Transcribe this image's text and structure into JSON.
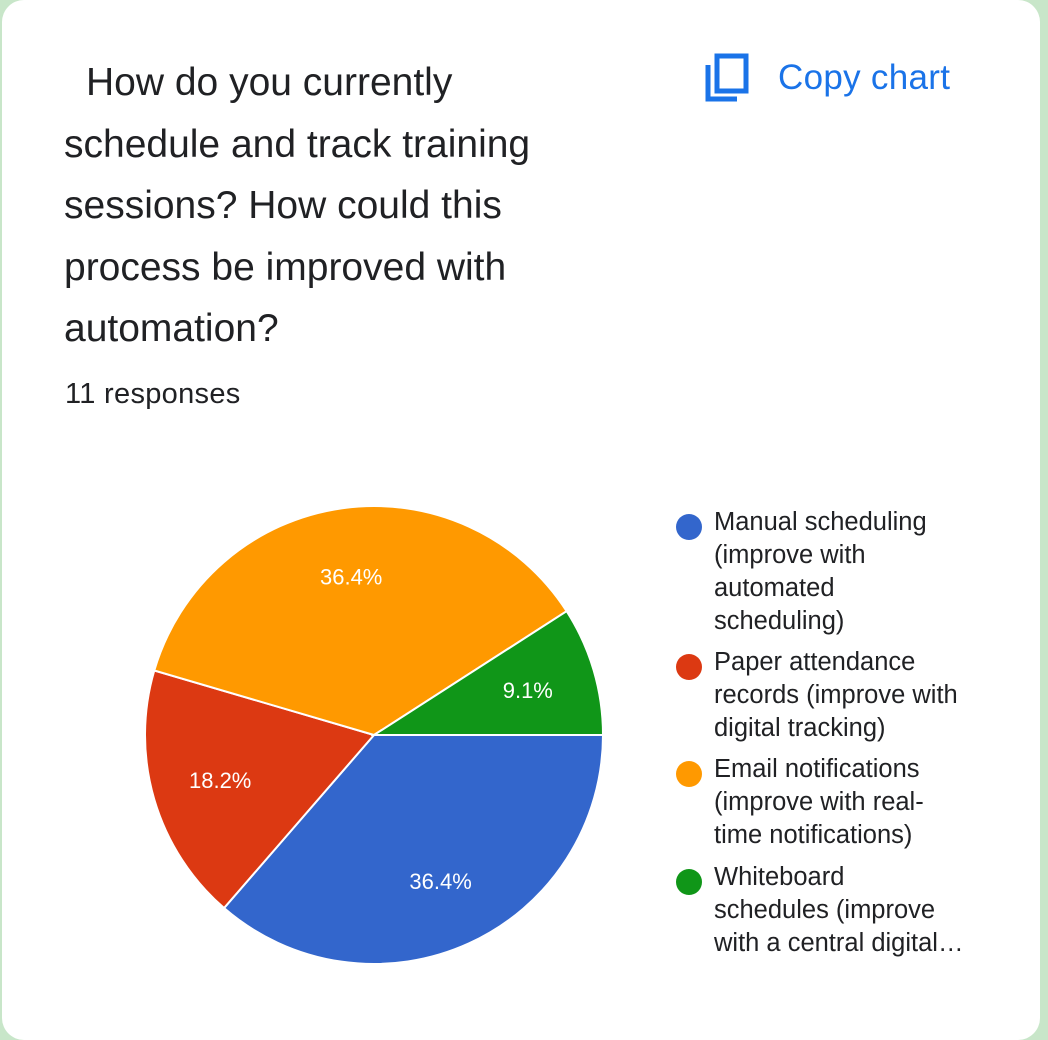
{
  "question": "How do you currently schedule and track training sessions? How could this process be improved with automation?",
  "response_count": "11 responses",
  "copy_chart": {
    "label": "Copy chart",
    "icon": "copy-icon",
    "color": "#1a73e8"
  },
  "chart_data": {
    "type": "pie",
    "title": "",
    "legend_position": "right",
    "slices": [
      {
        "label": "Manual scheduling (improve with automated scheduling)",
        "value": 36.4,
        "display": "36.4%",
        "color": "#3366cc"
      },
      {
        "label": "Paper attendance records (improve with digital tracking)",
        "value": 18.2,
        "display": "18.2%",
        "color": "#dc3912"
      },
      {
        "label": "Email notifications (improve with real-time notifications)",
        "value": 36.4,
        "display": "36.4%",
        "color": "#ff9900"
      },
      {
        "label": "Whiteboard schedules (improve with a central digital…",
        "value": 9.1,
        "display": "9.1%",
        "color": "#109618"
      }
    ]
  },
  "legend": [
    {
      "label": "Manual scheduling (improve with automated scheduling)",
      "color": "#3366cc"
    },
    {
      "label": "Paper attendance records (improve with digital tracking)",
      "color": "#dc3912"
    },
    {
      "label": "Email notifications (improve with real-time notifications)",
      "color": "#ff9900"
    },
    {
      "label": "Whiteboard schedules (improve with a central digital…",
      "color": "#109618"
    }
  ]
}
